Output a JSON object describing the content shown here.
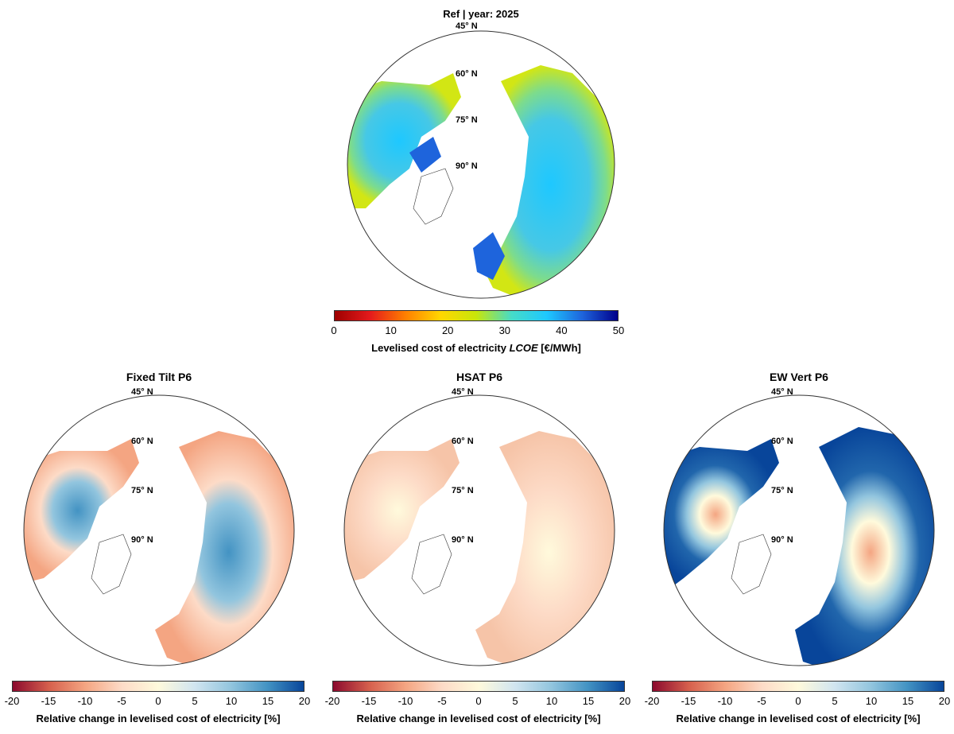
{
  "top": {
    "title": "Ref | year: 2025",
    "lat_labels": [
      "45° N",
      "60° N",
      "75° N",
      "90° N"
    ],
    "colorbar": {
      "ticks": [
        "0",
        "10",
        "20",
        "30",
        "40",
        "50"
      ],
      "label_prefix": "Levelised cost of electricity ",
      "label_em": "LCOE",
      "label_suffix": " [€/MWh]",
      "range": [
        0,
        50
      ],
      "colormap": [
        "#9e0000",
        "#e41a1c",
        "#ff7f00",
        "#ffd700",
        "#c8e60a",
        "#46dcc8",
        "#1ec8ff",
        "#1e64dc",
        "#00008b"
      ]
    }
  },
  "bottom_panels": [
    {
      "title": "Fixed Tilt P6"
    },
    {
      "title": "HSAT P6"
    },
    {
      "title": "EW Vert P6"
    }
  ],
  "bottom_lat_labels": [
    "45° N",
    "60° N",
    "75° N",
    "90° N"
  ],
  "bottom_colorbar": {
    "ticks": [
      "-20",
      "-15",
      "-10",
      "-5",
      "0",
      "5",
      "10",
      "15",
      "20"
    ],
    "label": "Relative change in levelised cost of electricity [%]",
    "range": [
      -20,
      20
    ],
    "colormap": [
      "#8b0a2e",
      "#d6604d",
      "#f4a582",
      "#fddbc7",
      "#fffadc",
      "#d1e5f0",
      "#92c5de",
      "#4393c3",
      "#08459a"
    ]
  },
  "colors": {
    "ocean": "#ffffff",
    "coast": "#333333"
  }
}
